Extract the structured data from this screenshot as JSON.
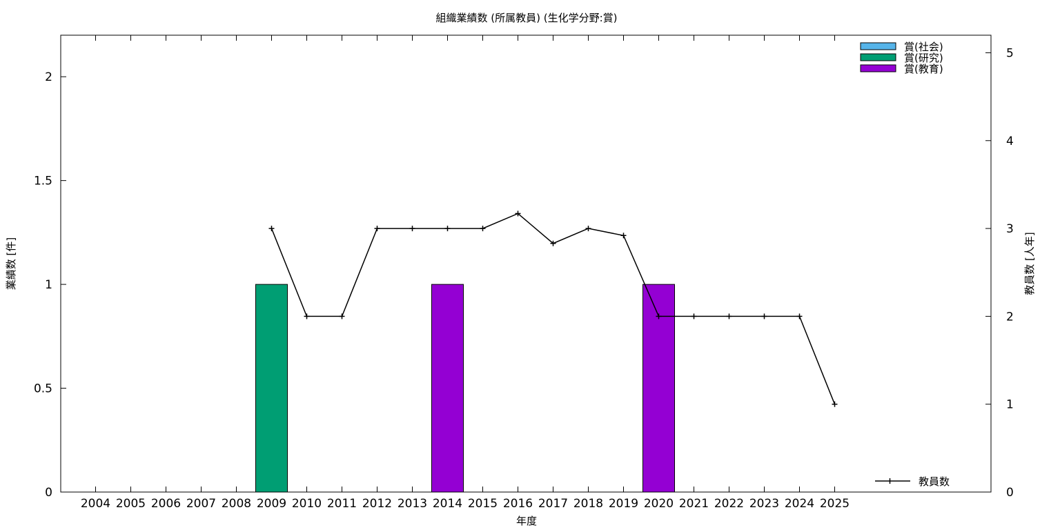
{
  "chart_data": {
    "type": "bar",
    "title": "組織業績数 (所属教員) (生化学分野:賞)",
    "xlabel": "年度",
    "ylabel": "業績数 [件]",
    "y2label": "教員数 [人年]",
    "categories": [
      "2004",
      "2005",
      "2006",
      "2007",
      "2008",
      "2009",
      "2010",
      "2011",
      "2012",
      "2013",
      "2014",
      "2015",
      "2016",
      "2017",
      "2018",
      "2019",
      "2020",
      "2021",
      "2022",
      "2023",
      "2024",
      "2025"
    ],
    "ylim": [
      0,
      2.2
    ],
    "y2lim": [
      0,
      5.2
    ],
    "yticks": [
      "0",
      "0.5",
      "1",
      "1.5",
      "2"
    ],
    "y2ticks": [
      "0",
      "1",
      "2",
      "3",
      "4",
      "5"
    ],
    "bar_legend_position": "top-right",
    "line_legend_position": "bottom-right",
    "series": [
      {
        "name": "賞(社会)",
        "color": "#56b4e9",
        "values": [
          0,
          0,
          0,
          0,
          0,
          0,
          0,
          0,
          0,
          0,
          0,
          0,
          0,
          0,
          0,
          0,
          0,
          0,
          0,
          0,
          0,
          0
        ]
      },
      {
        "name": "賞(研究)",
        "color": "#009e73",
        "values": [
          0,
          0,
          0,
          0,
          0,
          1,
          0,
          0,
          0,
          0,
          0,
          0,
          0,
          0,
          0,
          0,
          0,
          0,
          0,
          0,
          0,
          0
        ]
      },
      {
        "name": "賞(教育)",
        "color": "#9400d3",
        "values": [
          0,
          0,
          0,
          0,
          0,
          0,
          0,
          0,
          0,
          0,
          1,
          0,
          0,
          0,
          0,
          0,
          1,
          0,
          0,
          0,
          0,
          0
        ]
      }
    ],
    "line_series": {
      "name": "教員数",
      "color": "#000000",
      "axis": "y2",
      "values": [
        null,
        null,
        null,
        null,
        null,
        3,
        2,
        2,
        3,
        3,
        3,
        3,
        3.17,
        2.83,
        3,
        2.92,
        2,
        2,
        2,
        2,
        2,
        1
      ]
    }
  }
}
